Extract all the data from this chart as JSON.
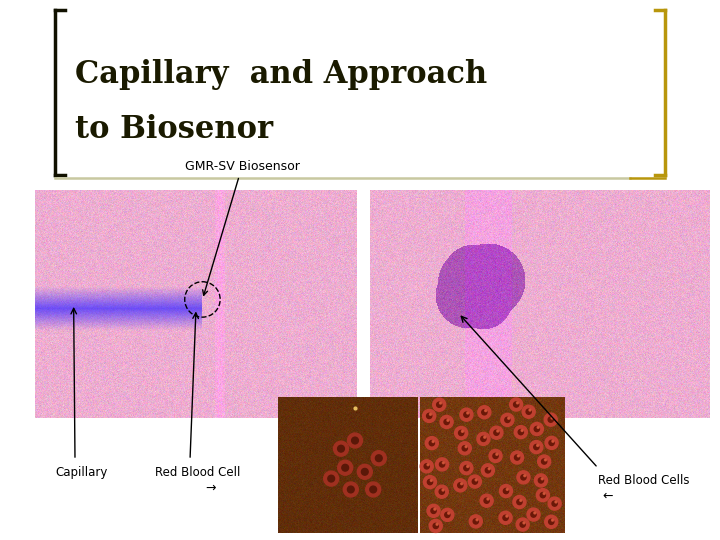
{
  "title_line1": "Capillary  and Approach",
  "title_line2": "to Biosenor",
  "title_color": "#1a1a00",
  "title_fontsize": 22,
  "bracket_color_left": "#111100",
  "bracket_color_right": "#b8960c",
  "divider_color": "#c8c8a0",
  "label_gmr": "GMR-SV Biosensor",
  "label_capillary": "Capillary",
  "label_rbc": "Red Blood Cell",
  "label_rbc_arrow": "→",
  "label_rbc_cells": "Red Blood Cells",
  "label_rbc_cells_arrow": "←",
  "bg_color": "#ffffff",
  "left_pink": "#e888b8",
  "right_pink": "#e888b8",
  "brown_dark": "#4a2000",
  "brown_light": "#6a3010"
}
